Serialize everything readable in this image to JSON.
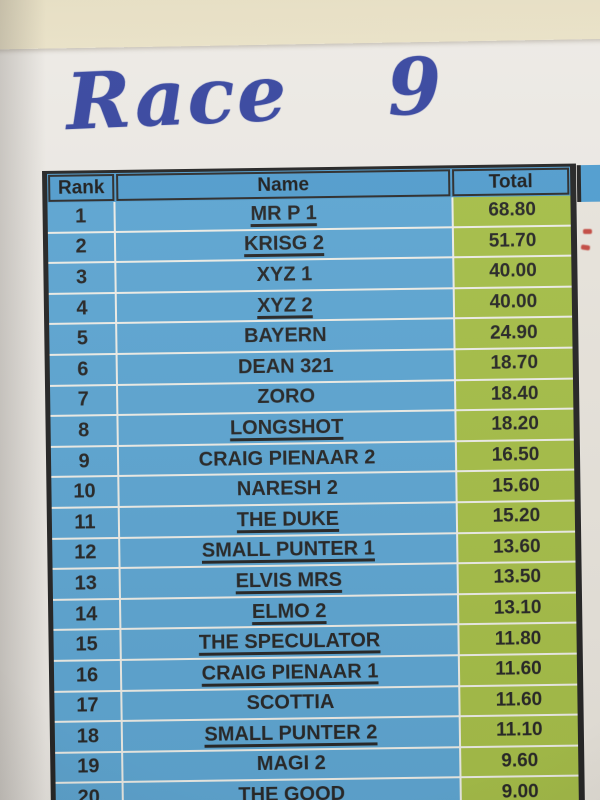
{
  "photo": {
    "handwritten_title": "Race 9"
  },
  "table": {
    "headers": {
      "rank": "Rank",
      "name": "Name",
      "total": "Total"
    },
    "rows": [
      {
        "rank": "1",
        "name": "MR P 1",
        "total": "68.80",
        "underline": true
      },
      {
        "rank": "2",
        "name": "KRISG 2",
        "total": "51.70",
        "underline": true
      },
      {
        "rank": "3",
        "name": "XYZ 1",
        "total": "40.00",
        "underline": false
      },
      {
        "rank": "4",
        "name": "XYZ 2",
        "total": "40.00",
        "underline": true
      },
      {
        "rank": "5",
        "name": "BAYERN",
        "total": "24.90",
        "underline": false
      },
      {
        "rank": "6",
        "name": "DEAN 321",
        "total": "18.70",
        "underline": false
      },
      {
        "rank": "7",
        "name": "ZORO",
        "total": "18.40",
        "underline": false
      },
      {
        "rank": "8",
        "name": "LONGSHOT",
        "total": "18.20",
        "underline": true
      },
      {
        "rank": "9",
        "name": "CRAIG PIENAAR 2",
        "total": "16.50",
        "underline": false
      },
      {
        "rank": "10",
        "name": "NARESH 2",
        "total": "15.60",
        "underline": false
      },
      {
        "rank": "11",
        "name": "THE DUKE",
        "total": "15.20",
        "underline": true
      },
      {
        "rank": "12",
        "name": "SMALL PUNTER 1",
        "total": "13.60",
        "underline": true
      },
      {
        "rank": "13",
        "name": "ELVIS MRS",
        "total": "13.50",
        "underline": true
      },
      {
        "rank": "14",
        "name": "ELMO 2",
        "total": "13.10",
        "underline": true
      },
      {
        "rank": "15",
        "name": "THE SPECULATOR",
        "total": "11.80",
        "underline": true
      },
      {
        "rank": "16",
        "name": "CRAIG PIENAAR 1",
        "total": "11.60",
        "underline": true
      },
      {
        "rank": "17",
        "name": "SCOTTIA",
        "total": "11.60",
        "underline": false
      },
      {
        "rank": "18",
        "name": "SMALL PUNTER 2",
        "total": "11.10",
        "underline": true
      },
      {
        "rank": "19",
        "name": "MAGI 2",
        "total": "9.60",
        "underline": false
      },
      {
        "rank": "20",
        "name": "THE GOOD",
        "total": "9.00",
        "underline": false
      }
    ],
    "colors": {
      "header_bg": "#4f9ed1",
      "cell_bg": "#5aa7d6",
      "total_bg": "#a5c042",
      "border": "#242424",
      "gridline": "#eeeee8",
      "text": "#262626",
      "ink": "#36459f"
    }
  }
}
